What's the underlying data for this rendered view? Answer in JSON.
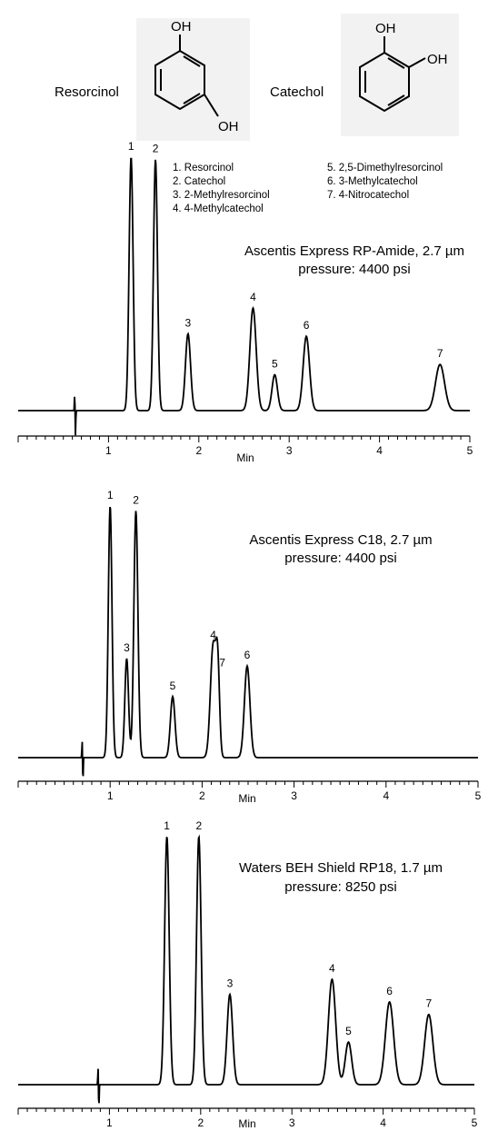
{
  "structures": [
    {
      "name": "Resorcinol",
      "oh_top": "OH",
      "oh_bottom": "OH"
    },
    {
      "name": "Catechol",
      "oh_top": "OH",
      "oh_right": "OH"
    }
  ],
  "compound_legend": [
    "1. Resorcinol",
    "2. Catechol",
    "3. 2-Methylresorcinol",
    "4. 4-Methylcatechol",
    "5. 2,5-Dimethylresorcinol",
    "6. 3-Methylcatechol",
    "7. 4-Nitrocatechol"
  ],
  "chart_data": [
    {
      "type": "line",
      "title": "Ascentis Express RP-Amide, 2.7 µm",
      "subtitle": "pressure: 4400 psi",
      "xlabel": "Min",
      "xlim": [
        0,
        5
      ],
      "xticks": [
        "1",
        "2",
        "3",
        "4",
        "5"
      ],
      "grid": false,
      "peaks": [
        {
          "label": "1",
          "x": 1.25,
          "height": 0.99,
          "width": 0.022
        },
        {
          "label": "2",
          "x": 1.52,
          "height": 0.98,
          "width": 0.022
        },
        {
          "label": "3",
          "x": 1.88,
          "height": 0.3,
          "width": 0.028
        },
        {
          "label": "4",
          "x": 2.6,
          "height": 0.4,
          "width": 0.035
        },
        {
          "label": "5",
          "x": 2.84,
          "height": 0.14,
          "width": 0.03
        },
        {
          "label": "6",
          "x": 3.19,
          "height": 0.29,
          "width": 0.035
        },
        {
          "label": "7",
          "x": 4.67,
          "height": 0.18,
          "width": 0.05
        }
      ]
    },
    {
      "type": "line",
      "title": "Ascentis Express C18, 2.7 µm",
      "subtitle": "pressure: 4400 psi",
      "xlabel": "Min",
      "xlim": [
        0,
        5
      ],
      "xticks": [
        "1",
        "2",
        "3",
        "4",
        "5"
      ],
      "grid": false,
      "peaks": [
        {
          "label": "1",
          "x": 1.0,
          "height": 0.99,
          "width": 0.02
        },
        {
          "label": "3",
          "x": 1.18,
          "height": 0.39,
          "width": 0.02
        },
        {
          "label": "2",
          "x": 1.28,
          "height": 0.97,
          "width": 0.022
        },
        {
          "label": "5",
          "x": 1.68,
          "height": 0.24,
          "width": 0.025
        },
        {
          "label": "4",
          "x": 2.12,
          "height": 0.44,
          "width": 0.03
        },
        {
          "label": "7",
          "x": 2.17,
          "height": 0.33,
          "width": 0.02
        },
        {
          "label": "6",
          "x": 2.49,
          "height": 0.36,
          "width": 0.03
        }
      ]
    },
    {
      "type": "line",
      "title": "Waters BEH Shield RP18, 1.7 µm",
      "subtitle": "pressure: 8250 psi",
      "xlabel": "Min",
      "xlim": [
        0,
        5
      ],
      "xticks": [
        "1",
        "2",
        "3",
        "4",
        "5"
      ],
      "grid": false,
      "peaks": [
        {
          "label": "1",
          "x": 1.63,
          "height": 0.99,
          "width": 0.025
        },
        {
          "label": "2",
          "x": 1.98,
          "height": 0.99,
          "width": 0.025
        },
        {
          "label": "3",
          "x": 2.32,
          "height": 0.36,
          "width": 0.03
        },
        {
          "label": "4",
          "x": 3.44,
          "height": 0.42,
          "width": 0.04
        },
        {
          "label": "5",
          "x": 3.62,
          "height": 0.17,
          "width": 0.035
        },
        {
          "label": "6",
          "x": 4.07,
          "height": 0.33,
          "width": 0.045
        },
        {
          "label": "7",
          "x": 4.5,
          "height": 0.28,
          "width": 0.045
        }
      ]
    }
  ]
}
